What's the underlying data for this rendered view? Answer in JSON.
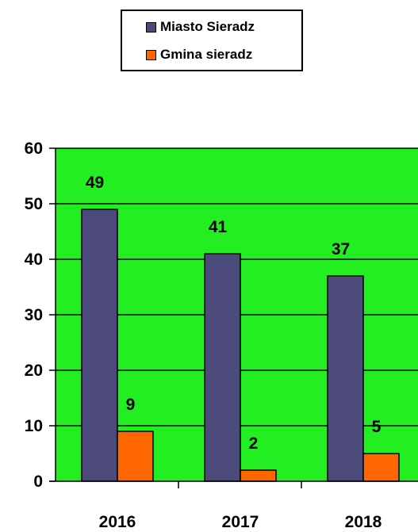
{
  "chart_data": {
    "type": "bar",
    "categories": [
      "2016",
      "2017",
      "2018"
    ],
    "series": [
      {
        "name": "Miasto Sieradz",
        "values": [
          49,
          41,
          37
        ],
        "color": "#4b4a7a"
      },
      {
        "name": "Gmina sieradz",
        "values": [
          9,
          2,
          5
        ],
        "color": "#ff6600"
      }
    ],
    "ylim": [
      0,
      60
    ],
    "yticks": [
      0,
      10,
      20,
      30,
      40,
      50,
      60
    ],
    "grid": true,
    "legend": "top-center",
    "plot_background": "#22ee22"
  }
}
